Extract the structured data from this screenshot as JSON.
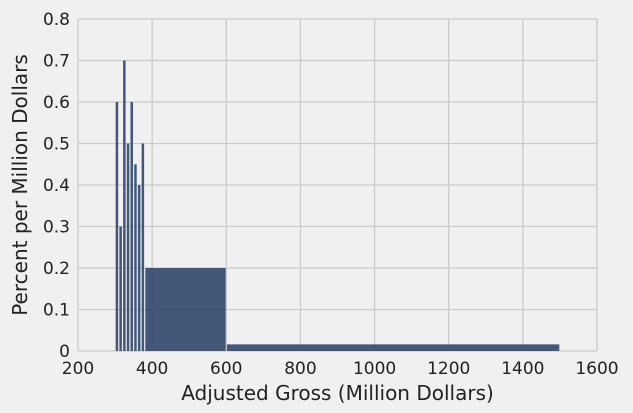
{
  "chart_data": {
    "type": "bar",
    "title": "",
    "xlabel": "Adjusted Gross (Million Dollars)",
    "ylabel": "Percent per Million Dollars",
    "xlim": [
      200,
      1600
    ],
    "ylim": [
      0,
      0.8
    ],
    "xticks": [
      200,
      400,
      600,
      800,
      1000,
      1200,
      1400,
      1600
    ],
    "yticks": [
      0,
      0.1,
      0.2,
      0.3,
      0.4,
      0.5,
      0.6,
      0.7,
      0.8
    ],
    "xtick_labels": [
      "200",
      "400",
      "600",
      "800",
      "1000",
      "1200",
      "1400",
      "1600"
    ],
    "ytick_labels": [
      "0",
      "0.1",
      "0.2",
      "0.3",
      "0.4",
      "0.5",
      "0.6",
      "0.7",
      "0.8"
    ],
    "grid": true,
    "bar_color": "#3a4e72",
    "bins": [
      {
        "start": 300,
        "end": 310,
        "value": 0.6
      },
      {
        "start": 310,
        "end": 320,
        "value": 0.3
      },
      {
        "start": 320,
        "end": 330,
        "value": 0.7
      },
      {
        "start": 330,
        "end": 340,
        "value": 0.5
      },
      {
        "start": 340,
        "end": 350,
        "value": 0.6
      },
      {
        "start": 350,
        "end": 360,
        "value": 0.45
      },
      {
        "start": 360,
        "end": 370,
        "value": 0.4
      },
      {
        "start": 370,
        "end": 380,
        "value": 0.5
      },
      {
        "start": 380,
        "end": 600,
        "value": 0.2
      },
      {
        "start": 600,
        "end": 1500,
        "value": 0.016
      }
    ]
  }
}
